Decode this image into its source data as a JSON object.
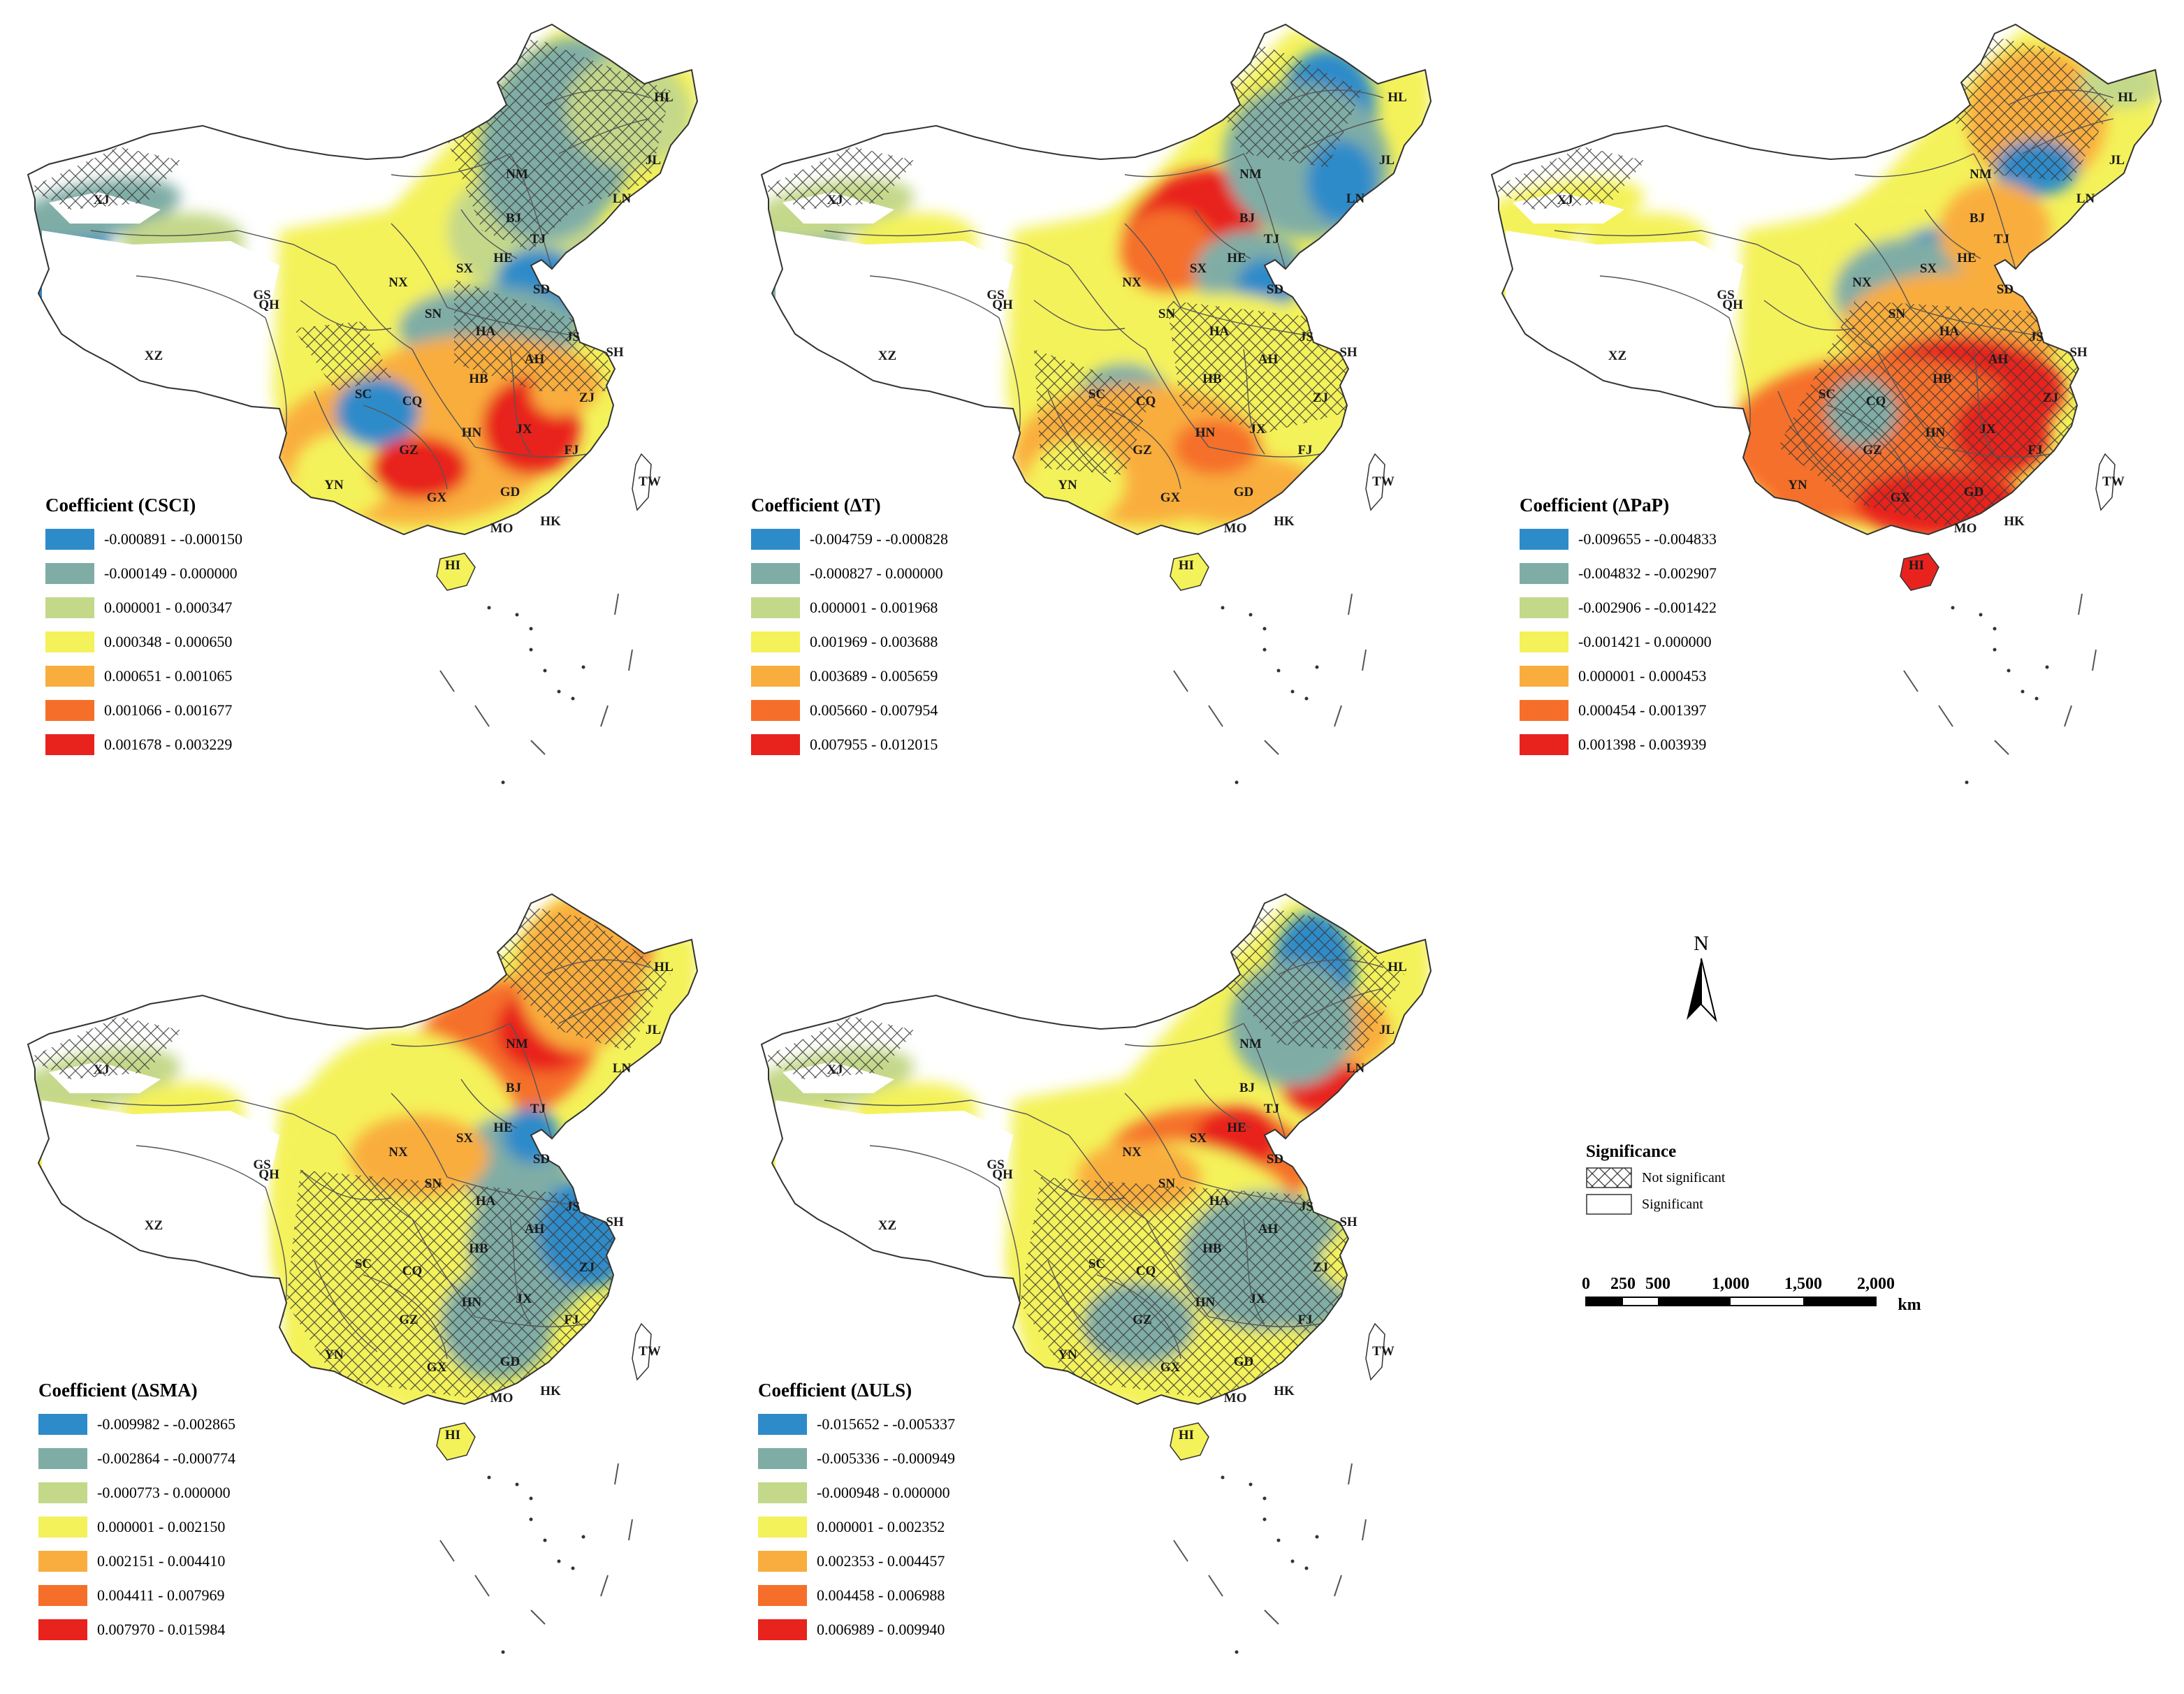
{
  "hatch_color": "#3b3b3b",
  "panels": [
    {
      "legend_title": "Coefficient (CSCI)",
      "classes": [
        {
          "range": "-0.000891 - -0.000150",
          "color": "#2e8bc9"
        },
        {
          "range": "-0.000149 - 0.000000",
          "color": "#7fada6"
        },
        {
          "range": "0.000001 - 0.000347",
          "color": "#c4d88a"
        },
        {
          "range": "0.000348 - 0.000650",
          "color": "#f4f25a"
        },
        {
          "range": "0.000651 - 0.001065",
          "color": "#f9ad3e"
        },
        {
          "range": "0.001066 - 0.001677",
          "color": "#f56f2a"
        },
        {
          "range": "0.001678 - 0.003229",
          "color": "#e8231e"
        }
      ]
    },
    {
      "legend_title": "Coefficient (ΔT)",
      "classes": [
        {
          "range": "-0.004759 - -0.000828",
          "color": "#2e8bc9"
        },
        {
          "range": "-0.000827 - 0.000000",
          "color": "#7fada6"
        },
        {
          "range": "0.000001 - 0.001968",
          "color": "#c4d88a"
        },
        {
          "range": "0.001969 - 0.003688",
          "color": "#f4f25a"
        },
        {
          "range": "0.003689 - 0.005659",
          "color": "#f9ad3e"
        },
        {
          "range": "0.005660 - 0.007954",
          "color": "#f56f2a"
        },
        {
          "range": "0.007955 - 0.012015",
          "color": "#e8231e"
        }
      ]
    },
    {
      "legend_title": "Coefficient (ΔPaP)",
      "classes": [
        {
          "range": "-0.009655 - -0.004833",
          "color": "#2e8bc9"
        },
        {
          "range": "-0.004832 - -0.002907",
          "color": "#7fada6"
        },
        {
          "range": "-0.002906 - -0.001422",
          "color": "#c4d88a"
        },
        {
          "range": "-0.001421 - 0.000000",
          "color": "#f4f25a"
        },
        {
          "range": "0.000001 - 0.000453",
          "color": "#f9ad3e"
        },
        {
          "range": "0.000454 - 0.001397",
          "color": "#f56f2a"
        },
        {
          "range": "0.001398 - 0.003939",
          "color": "#e8231e"
        }
      ]
    },
    {
      "legend_title": "Coefficient (ΔSMA)",
      "classes": [
        {
          "range": "-0.009982 - -0.002865",
          "color": "#2e8bc9"
        },
        {
          "range": "-0.002864 - -0.000774",
          "color": "#7fada6"
        },
        {
          "range": "-0.000773 - 0.000000",
          "color": "#c4d88a"
        },
        {
          "range": "0.000001 - 0.002150",
          "color": "#f4f25a"
        },
        {
          "range": "0.002151 - 0.004410",
          "color": "#f9ad3e"
        },
        {
          "range": "0.004411 - 0.007969",
          "color": "#f56f2a"
        },
        {
          "range": "0.007970 - 0.015984",
          "color": "#e8231e"
        }
      ]
    },
    {
      "legend_title": "Coefficient (ΔULS)",
      "classes": [
        {
          "range": "-0.015652 - -0.005337",
          "color": "#2e8bc9"
        },
        {
          "range": "-0.005336 - -0.000949",
          "color": "#7fada6"
        },
        {
          "range": "-0.000948 - 0.000000",
          "color": "#c4d88a"
        },
        {
          "range": "0.000001 - 0.002352",
          "color": "#f4f25a"
        },
        {
          "range": "0.002353 - 0.004457",
          "color": "#f9ad3e"
        },
        {
          "range": "0.004458 - 0.006988",
          "color": "#f56f2a"
        },
        {
          "range": "0.006989 - 0.009940",
          "color": "#e8231e"
        }
      ]
    }
  ],
  "province_labels": [
    "HL",
    "JL",
    "LN",
    "NM",
    "BJ",
    "TJ",
    "HE",
    "SX",
    "SD",
    "XJ",
    "GS",
    "NX",
    "QH",
    "SN",
    "HA",
    "JS",
    "SH",
    "XZ",
    "AH",
    "HB",
    "SC",
    "CQ",
    "ZJ",
    "JX",
    "HN",
    "GZ",
    "FJ",
    "YN",
    "GX",
    "GD",
    "TW",
    "MO",
    "HK",
    "HI"
  ],
  "north_arrow": {
    "label": "N"
  },
  "significance": {
    "title": "Significance",
    "not_significant": "Not significant",
    "significant": "Significant"
  },
  "scale_bar": {
    "ticks": [
      "0",
      "250",
      "500",
      "1,000",
      "1,500",
      "2,000"
    ],
    "unit": "km"
  }
}
